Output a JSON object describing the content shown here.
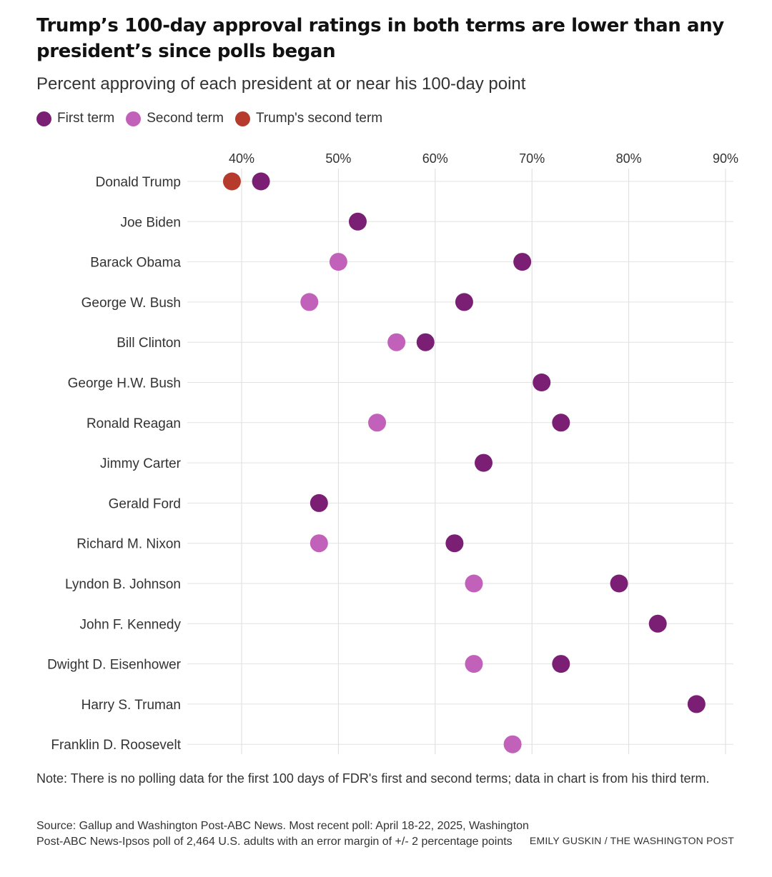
{
  "header": {
    "title": "Trump’s 100-day approval ratings in both terms are lower than any president’s since polls began",
    "subtitle": "Percent approving of each president at or near his 100-day point"
  },
  "legend": [
    {
      "label": "First term",
      "color": "#7a1f74"
    },
    {
      "label": "Second term",
      "color": "#c261b9"
    },
    {
      "label": "Trump's second term",
      "color": "#b63b2c"
    }
  ],
  "chart_data": {
    "type": "scatter",
    "title": "Trump’s 100-day approval ratings in both terms are lower than any president’s since polls began",
    "subtitle": "Percent approving of each president at or near his 100-day point",
    "xlabel": "",
    "ylabel": "",
    "xlim": [
      37,
      92
    ],
    "x_ticks": [
      40,
      50,
      60,
      70,
      80,
      90
    ],
    "x_tick_labels": [
      "40%",
      "50%",
      "60%",
      "70%",
      "80%",
      "90%"
    ],
    "grid": true,
    "legend_position": "top-left",
    "categories": [
      "Donald Trump",
      "Joe Biden",
      "Barack Obama",
      "George W. Bush",
      "Bill Clinton",
      "George H.W. Bush",
      "Ronald Reagan",
      "Jimmy Carter",
      "Gerald Ford",
      "Richard M. Nixon",
      "Lyndon B. Johnson",
      "John F. Kennedy",
      "Dwight D. Eisenhower",
      "Harry S. Truman",
      "Franklin D. Roosevelt"
    ],
    "series": [
      {
        "name": "First term",
        "color": "#7a1f74",
        "values": [
          42,
          52,
          69,
          63,
          59,
          71,
          73,
          65,
          48,
          62,
          79,
          83,
          73,
          87,
          null
        ]
      },
      {
        "name": "Second term",
        "color": "#c261b9",
        "values": [
          null,
          null,
          50,
          47,
          56,
          null,
          54,
          null,
          null,
          48,
          64,
          null,
          64,
          null,
          68
        ]
      },
      {
        "name": "Trump's second term",
        "color": "#b63b2c",
        "values": [
          39,
          null,
          null,
          null,
          null,
          null,
          null,
          null,
          null,
          null,
          null,
          null,
          null,
          null,
          null
        ]
      }
    ]
  },
  "footer": {
    "note": "Note: There is no polling data for the first 100 days of FDR's first and second terms; data in chart is from his third term.",
    "source": "Source: Gallup and Washington Post-ABC News. Most recent poll: April 18-22, 2025, Washington Post-ABC News-Ipsos poll of 2,464 U.S. adults with an error margin of +/- 2 percentage points",
    "credit": "EMILY GUSKIN / THE WASHINGTON POST"
  }
}
